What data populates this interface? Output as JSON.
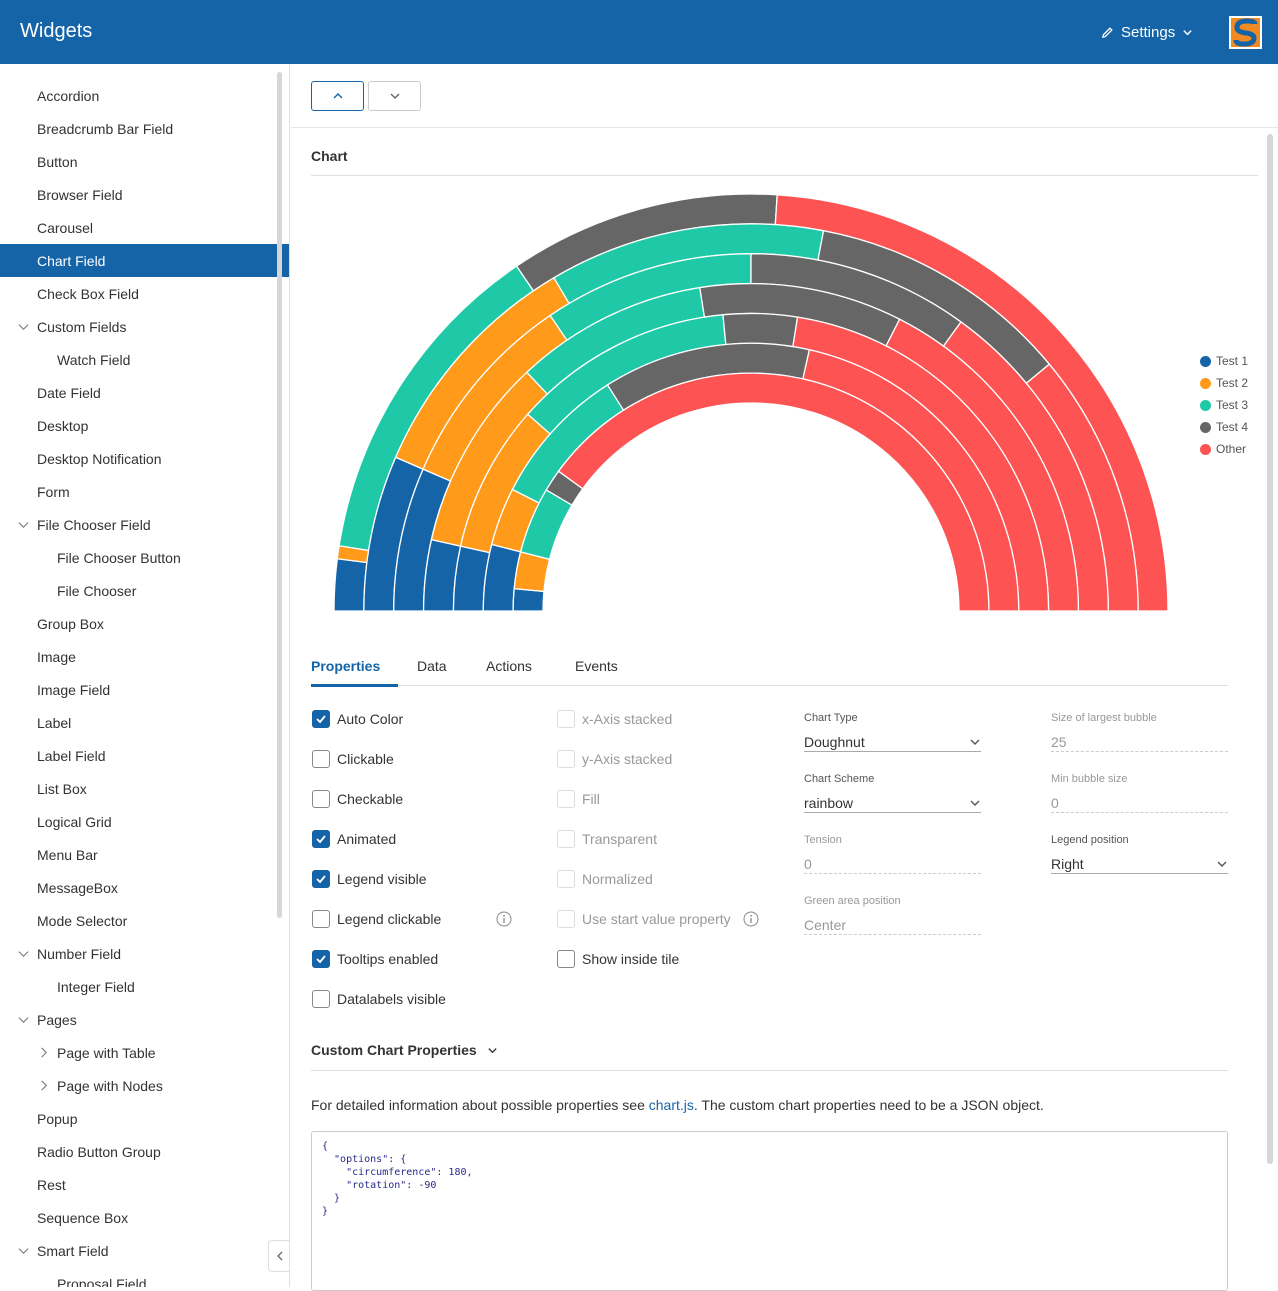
{
  "header": {
    "title": "Widgets",
    "settings_label": "Settings"
  },
  "sidebar": {
    "items": [
      {
        "label": "Accordion",
        "level": 0,
        "toggle": ""
      },
      {
        "label": "Breadcrumb Bar Field",
        "level": 0,
        "toggle": ""
      },
      {
        "label": "Button",
        "level": 0,
        "toggle": ""
      },
      {
        "label": "Browser Field",
        "level": 0,
        "toggle": ""
      },
      {
        "label": "Carousel",
        "level": 0,
        "toggle": ""
      },
      {
        "label": "Chart Field",
        "level": 0,
        "toggle": "",
        "selected": true
      },
      {
        "label": "Check Box Field",
        "level": 0,
        "toggle": ""
      },
      {
        "label": "Custom Fields",
        "level": 0,
        "toggle": "expanded"
      },
      {
        "label": "Watch Field",
        "level": 1,
        "toggle": ""
      },
      {
        "label": "Date Field",
        "level": 0,
        "toggle": ""
      },
      {
        "label": "Desktop",
        "level": 0,
        "toggle": ""
      },
      {
        "label": "Desktop Notification",
        "level": 0,
        "toggle": ""
      },
      {
        "label": "Form",
        "level": 0,
        "toggle": ""
      },
      {
        "label": "File Chooser Field",
        "level": 0,
        "toggle": "expanded"
      },
      {
        "label": "File Chooser Button",
        "level": 1,
        "toggle": ""
      },
      {
        "label": "File Chooser",
        "level": 1,
        "toggle": ""
      },
      {
        "label": "Group Box",
        "level": 0,
        "toggle": ""
      },
      {
        "label": "Image",
        "level": 0,
        "toggle": ""
      },
      {
        "label": "Image Field",
        "level": 0,
        "toggle": ""
      },
      {
        "label": "Label",
        "level": 0,
        "toggle": ""
      },
      {
        "label": "Label Field",
        "level": 0,
        "toggle": ""
      },
      {
        "label": "List Box",
        "level": 0,
        "toggle": ""
      },
      {
        "label": "Logical Grid",
        "level": 0,
        "toggle": ""
      },
      {
        "label": "Menu Bar",
        "level": 0,
        "toggle": ""
      },
      {
        "label": "MessageBox",
        "level": 0,
        "toggle": ""
      },
      {
        "label": "Mode Selector",
        "level": 0,
        "toggle": ""
      },
      {
        "label": "Number Field",
        "level": 0,
        "toggle": "expanded"
      },
      {
        "label": "Integer Field",
        "level": 1,
        "toggle": ""
      },
      {
        "label": "Pages",
        "level": 0,
        "toggle": "expanded"
      },
      {
        "label": "Page with Table",
        "level": 1,
        "toggle": "collapsed"
      },
      {
        "label": "Page with Nodes",
        "level": 1,
        "toggle": "collapsed"
      },
      {
        "label": "Popup",
        "level": 0,
        "toggle": ""
      },
      {
        "label": "Radio Button Group",
        "level": 0,
        "toggle": ""
      },
      {
        "label": "Rest",
        "level": 0,
        "toggle": ""
      },
      {
        "label": "Sequence Box",
        "level": 0,
        "toggle": ""
      },
      {
        "label": "Smart Field",
        "level": 0,
        "toggle": "expanded"
      },
      {
        "label": "Proposal Field",
        "level": 1,
        "toggle": ""
      }
    ]
  },
  "chart_section": {
    "title": "Chart"
  },
  "chart_data": {
    "type": "doughnut",
    "circumference_deg": 180,
    "rotation_deg": -90,
    "legend_position": "right",
    "series_labels": [
      "Test 1",
      "Test 2",
      "Test 3",
      "Test 4",
      "Other"
    ],
    "colors": [
      "#1564a8",
      "#ff9a1a",
      "#1fc9a8",
      "#666666",
      "#fe5353"
    ],
    "datasets": [
      {
        "values": [
          4,
          1,
          26,
          21,
          48
        ]
      },
      {
        "values": [
          13,
          20,
          23,
          22,
          22
        ]
      },
      {
        "values": [
          13,
          18,
          19,
          20,
          30
        ]
      },
      {
        "values": [
          7,
          19,
          19,
          20,
          35
        ]
      },
      {
        "values": [
          7,
          16,
          24,
          8,
          45
        ]
      },
      {
        "values": [
          8,
          7,
          17,
          25,
          43
        ]
      },
      {
        "values": [
          3,
          5,
          9,
          3,
          80
        ]
      }
    ]
  },
  "tabs": [
    "Properties",
    "Data",
    "Actions",
    "Events"
  ],
  "properties": {
    "col1": [
      {
        "label": "Auto Color",
        "checked": true
      },
      {
        "label": "Clickable",
        "checked": false
      },
      {
        "label": "Checkable",
        "checked": false
      },
      {
        "label": "Animated",
        "checked": true
      },
      {
        "label": "Legend visible",
        "checked": true
      },
      {
        "label": "Legend clickable",
        "checked": false,
        "info": true
      },
      {
        "label": "Tooltips enabled",
        "checked": true
      },
      {
        "label": "Datalabels visible",
        "checked": false
      }
    ],
    "col2": [
      {
        "label": "x-Axis stacked",
        "checked": false,
        "disabled": true
      },
      {
        "label": "y-Axis stacked",
        "checked": false,
        "disabled": true
      },
      {
        "label": "Fill",
        "checked": false,
        "disabled": true
      },
      {
        "label": "Transparent",
        "checked": false,
        "disabled": true
      },
      {
        "label": "Normalized",
        "checked": false,
        "disabled": true
      },
      {
        "label": "Use start value property",
        "checked": false,
        "disabled": true,
        "info": true
      },
      {
        "label": "Show inside tile",
        "checked": false,
        "disabled": false
      }
    ],
    "chart_type": {
      "label": "Chart Type",
      "value": "Doughnut"
    },
    "chart_scheme": {
      "label": "Chart Scheme",
      "value": "rainbow"
    },
    "tension": {
      "label": "Tension",
      "value": "0"
    },
    "green_area": {
      "label": "Green area position",
      "value": "Center"
    },
    "bubble_size": {
      "label": "Size of largest bubble",
      "value": "25"
    },
    "min_bubble": {
      "label": "Min bubble size",
      "value": "0"
    },
    "legend_position": {
      "label": "Legend position",
      "value": "Right"
    }
  },
  "custom_props": {
    "title": "Custom Chart Properties",
    "desc_before": "For detailed information about possible properties see ",
    "link": "chart.js",
    "desc_after": ". The custom chart properties need to be a JSON object.",
    "code": "{\n  \"options\": {\n    \"circumference\": 180,\n    \"rotation\": -90\n  }\n}"
  }
}
